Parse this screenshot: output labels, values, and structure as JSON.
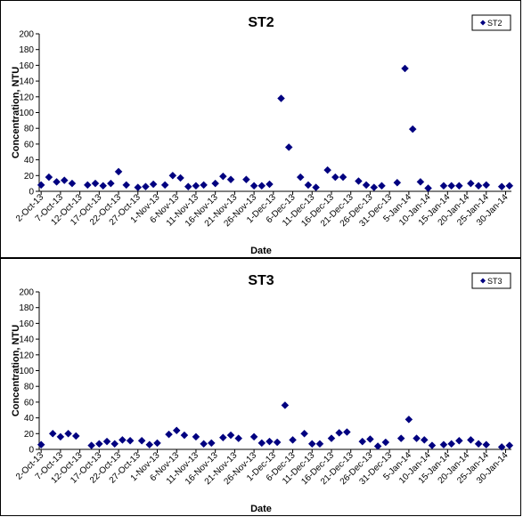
{
  "chart_data": [
    {
      "type": "scatter",
      "title": "ST2",
      "xlabel": "Date",
      "ylabel": "Concentration, NTU",
      "ylim": [
        0,
        200
      ],
      "yticks": [
        "0",
        "20",
        "40",
        "60",
        "80",
        "100",
        "120",
        "140",
        "160",
        "180",
        "200"
      ],
      "xlim": [
        "2-Oct-13",
        "31-Jan-14"
      ],
      "xticks": [
        "2-Oct-13",
        "7-Oct-13",
        "12-Oct-13",
        "17-Oct-13",
        "22-Oct-13",
        "27-Oct-13",
        "1-Nov-13",
        "6-Nov-13",
        "11-Nov-13",
        "16-Nov-13",
        "21-Nov-13",
        "26-Nov-13",
        "1-Dec-13",
        "6-Dec-13",
        "11-Dec-13",
        "16-Dec-13",
        "21-Dec-13",
        "26-Dec-13",
        "31-Dec-13",
        "5-Jan-14",
        "10-Jan-14",
        "15-Jan-14",
        "20-Jan-14",
        "25-Jan-14",
        "30-Jan-14"
      ],
      "grid": false,
      "legend_position": "top-right",
      "marker_color": "#000080",
      "series": [
        {
          "name": "ST2",
          "points": [
            [
              "2-Oct-13",
              8
            ],
            [
              "4-Oct-13",
              18
            ],
            [
              "6-Oct-13",
              12
            ],
            [
              "8-Oct-13",
              14
            ],
            [
              "10-Oct-13",
              10
            ],
            [
              "14-Oct-13",
              8
            ],
            [
              "16-Oct-13",
              10
            ],
            [
              "18-Oct-13",
              7
            ],
            [
              "20-Oct-13",
              10
            ],
            [
              "22-Oct-13",
              25
            ],
            [
              "24-Oct-13",
              8
            ],
            [
              "27-Oct-13",
              5
            ],
            [
              "29-Oct-13",
              6
            ],
            [
              "31-Oct-13",
              9
            ],
            [
              "3-Nov-13",
              8
            ],
            [
              "5-Nov-13",
              20
            ],
            [
              "7-Nov-13",
              17
            ],
            [
              "9-Nov-13",
              6
            ],
            [
              "11-Nov-13",
              7
            ],
            [
              "13-Nov-13",
              8
            ],
            [
              "16-Nov-13",
              10
            ],
            [
              "18-Nov-13",
              19
            ],
            [
              "20-Nov-13",
              15
            ],
            [
              "24-Nov-13",
              15
            ],
            [
              "26-Nov-13",
              7
            ],
            [
              "28-Nov-13",
              7
            ],
            [
              "30-Nov-13",
              9
            ],
            [
              "3-Dec-13",
              118
            ],
            [
              "5-Dec-13",
              56
            ],
            [
              "8-Dec-13",
              18
            ],
            [
              "10-Dec-13",
              8
            ],
            [
              "12-Dec-13",
              5
            ],
            [
              "15-Dec-13",
              27
            ],
            [
              "17-Dec-13",
              18
            ],
            [
              "19-Dec-13",
              18
            ],
            [
              "23-Dec-13",
              13
            ],
            [
              "25-Dec-13",
              8
            ],
            [
              "27-Dec-13",
              5
            ],
            [
              "29-Dec-13",
              7
            ],
            [
              "2-Jan-14",
              11
            ],
            [
              "4-Jan-14",
              156
            ],
            [
              "6-Jan-14",
              79
            ],
            [
              "8-Jan-14",
              12
            ],
            [
              "10-Jan-14",
              4
            ],
            [
              "14-Jan-14",
              7
            ],
            [
              "16-Jan-14",
              7
            ],
            [
              "18-Jan-14",
              7
            ],
            [
              "21-Jan-14",
              10
            ],
            [
              "23-Jan-14",
              7
            ],
            [
              "25-Jan-14",
              8
            ],
            [
              "29-Jan-14",
              6
            ],
            [
              "31-Jan-14",
              7
            ]
          ]
        }
      ]
    },
    {
      "type": "scatter",
      "title": "ST3",
      "xlabel": "Date",
      "ylabel": "Concentration, NTU",
      "ylim": [
        0,
        200
      ],
      "yticks": [
        "0",
        "20",
        "40",
        "60",
        "80",
        "100",
        "120",
        "140",
        "160",
        "180",
        "200"
      ],
      "xlim": [
        "2-Oct-13",
        "31-Jan-14"
      ],
      "xticks": [
        "2-Oct-13",
        "7-Oct-13",
        "12-Oct-13",
        "17-Oct-13",
        "22-Oct-13",
        "27-Oct-13",
        "1-Nov-13",
        "6-Nov-13",
        "11-Nov-13",
        "16-Nov-13",
        "21-Nov-13",
        "26-Nov-13",
        "1-Dec-13",
        "6-Dec-13",
        "11-Dec-13",
        "16-Dec-13",
        "21-Dec-13",
        "26-Dec-13",
        "31-Dec-13",
        "5-Jan-14",
        "10-Jan-14",
        "15-Jan-14",
        "20-Jan-14",
        "25-Jan-14",
        "30-Jan-14"
      ],
      "grid": false,
      "legend_position": "top-right",
      "marker_color": "#000080",
      "series": [
        {
          "name": "ST3",
          "points": [
            [
              "2-Oct-13",
              6
            ],
            [
              "5-Oct-13",
              20
            ],
            [
              "7-Oct-13",
              16
            ],
            [
              "9-Oct-13",
              20
            ],
            [
              "11-Oct-13",
              17
            ],
            [
              "15-Oct-13",
              5
            ],
            [
              "17-Oct-13",
              7
            ],
            [
              "19-Oct-13",
              10
            ],
            [
              "21-Oct-13",
              7
            ],
            [
              "23-Oct-13",
              12
            ],
            [
              "25-Oct-13",
              11
            ],
            [
              "28-Oct-13",
              11
            ],
            [
              "30-Oct-13",
              6
            ],
            [
              "1-Nov-13",
              8
            ],
            [
              "4-Nov-13",
              19
            ],
            [
              "6-Nov-13",
              24
            ],
            [
              "8-Nov-13",
              18
            ],
            [
              "11-Nov-13",
              16
            ],
            [
              "13-Nov-13",
              7
            ],
            [
              "15-Nov-13",
              8
            ],
            [
              "18-Nov-13",
              15
            ],
            [
              "20-Nov-13",
              18
            ],
            [
              "22-Nov-13",
              14
            ],
            [
              "26-Nov-13",
              16
            ],
            [
              "28-Nov-13",
              8
            ],
            [
              "30-Nov-13",
              10
            ],
            [
              "2-Dec-13",
              9
            ],
            [
              "4-Dec-13",
              56
            ],
            [
              "6-Dec-13",
              12
            ],
            [
              "9-Dec-13",
              20
            ],
            [
              "11-Dec-13",
              7
            ],
            [
              "13-Dec-13",
              7
            ],
            [
              "16-Dec-13",
              14
            ],
            [
              "18-Dec-13",
              21
            ],
            [
              "20-Dec-13",
              22
            ],
            [
              "24-Dec-13",
              10
            ],
            [
              "26-Dec-13",
              13
            ],
            [
              "28-Dec-13",
              4
            ],
            [
              "30-Dec-13",
              9
            ],
            [
              "3-Jan-14",
              14
            ],
            [
              "5-Jan-14",
              38
            ],
            [
              "7-Jan-14",
              14
            ],
            [
              "9-Jan-14",
              12
            ],
            [
              "11-Jan-14",
              5
            ],
            [
              "14-Jan-14",
              6
            ],
            [
              "16-Jan-14",
              7
            ],
            [
              "18-Jan-14",
              11
            ],
            [
              "21-Jan-14",
              12
            ],
            [
              "23-Jan-14",
              7
            ],
            [
              "25-Jan-14",
              6
            ],
            [
              "29-Jan-14",
              3
            ],
            [
              "31-Jan-14",
              5
            ]
          ]
        }
      ]
    }
  ]
}
